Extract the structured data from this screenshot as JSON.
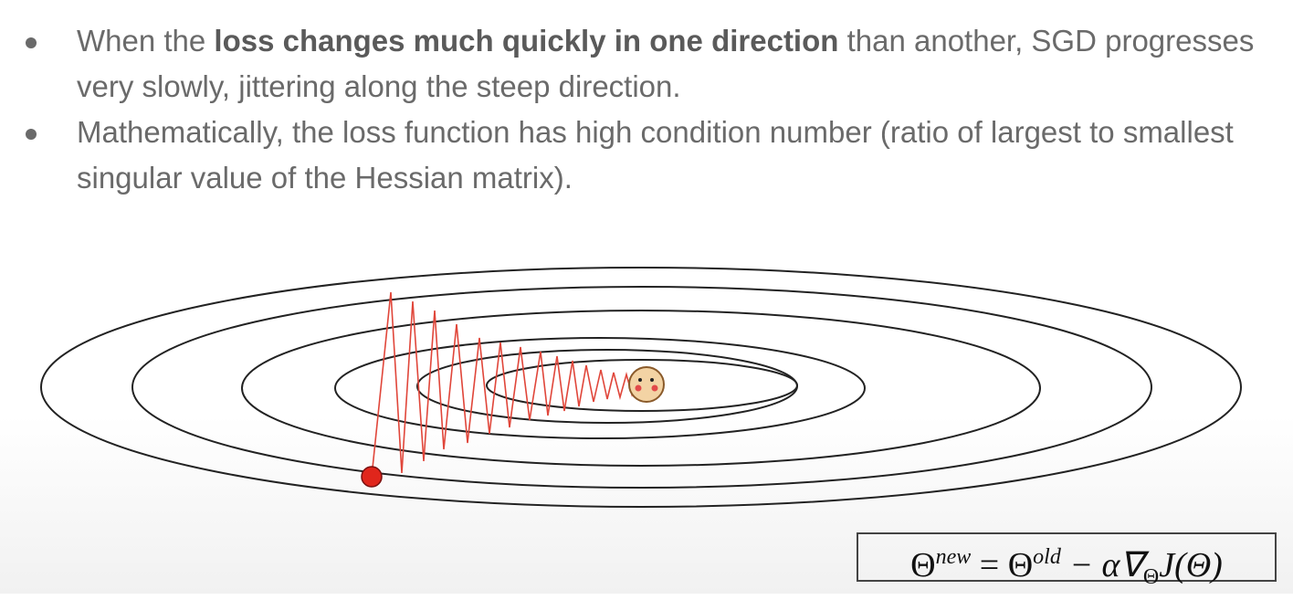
{
  "bullets": [
    {
      "parts": [
        {
          "text": "When the "
        },
        {
          "text": "loss changes much quickly in one direction",
          "bold": true
        },
        {
          "text": " than another, SGD progresses very slowly, jittering along the steep direction."
        }
      ]
    },
    {
      "parts": [
        {
          "text": "Mathematically, the loss function has high condition number (ratio of largest to smallest singular value of the Hessian matrix)."
        }
      ]
    }
  ],
  "formula": {
    "lhs": "Θ",
    "lhs_sup": "new",
    "mid": "= Θ",
    "mid_sup": "old",
    "rhs": "− α∇",
    "rhs_sub": "Θ",
    "tail": "J(Θ)"
  }
}
